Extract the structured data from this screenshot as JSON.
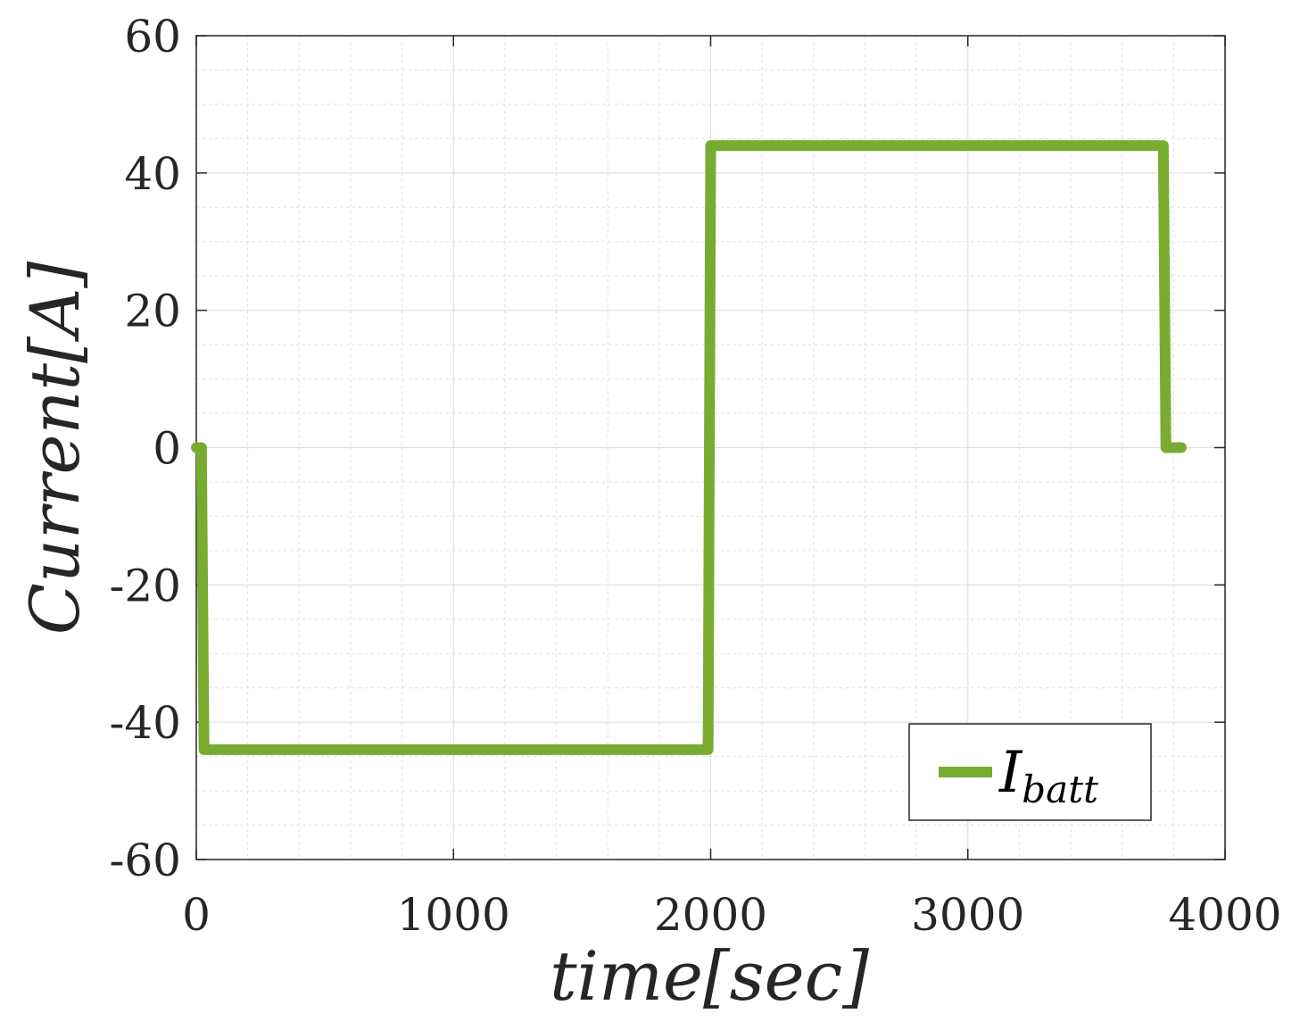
{
  "chart_data": {
    "type": "line",
    "title": "",
    "xlabel": "time[sec]",
    "ylabel": "Current[A]",
    "xlim": [
      0,
      4000
    ],
    "ylim": [
      -60,
      60
    ],
    "x_ticks": [
      0,
      1000,
      2000,
      3000,
      4000
    ],
    "y_ticks": [
      -60,
      -40,
      -20,
      0,
      20,
      40,
      60
    ],
    "x_tick_labels": [
      "0",
      "1000",
      "2000",
      "3000",
      "4000"
    ],
    "y_tick_labels": [
      "-60",
      "-40",
      "-20",
      "0",
      "20",
      "40",
      "60"
    ],
    "grid": true,
    "minor_grid": true,
    "legend_position": "bottom-right",
    "legend": {
      "main": "I",
      "sub": "batt"
    },
    "series": [
      {
        "name": "I_batt",
        "color": "#77ac30",
        "x": [
          0,
          20,
          30,
          1990,
          2000,
          3760,
          3770,
          3780,
          3830
        ],
        "y": [
          0,
          0,
          -44,
          -44,
          44,
          44,
          0,
          0,
          0
        ]
      }
    ]
  },
  "colors": {
    "series": "#77ac30",
    "axis": "#262626",
    "grid": "#dfdfdf"
  }
}
